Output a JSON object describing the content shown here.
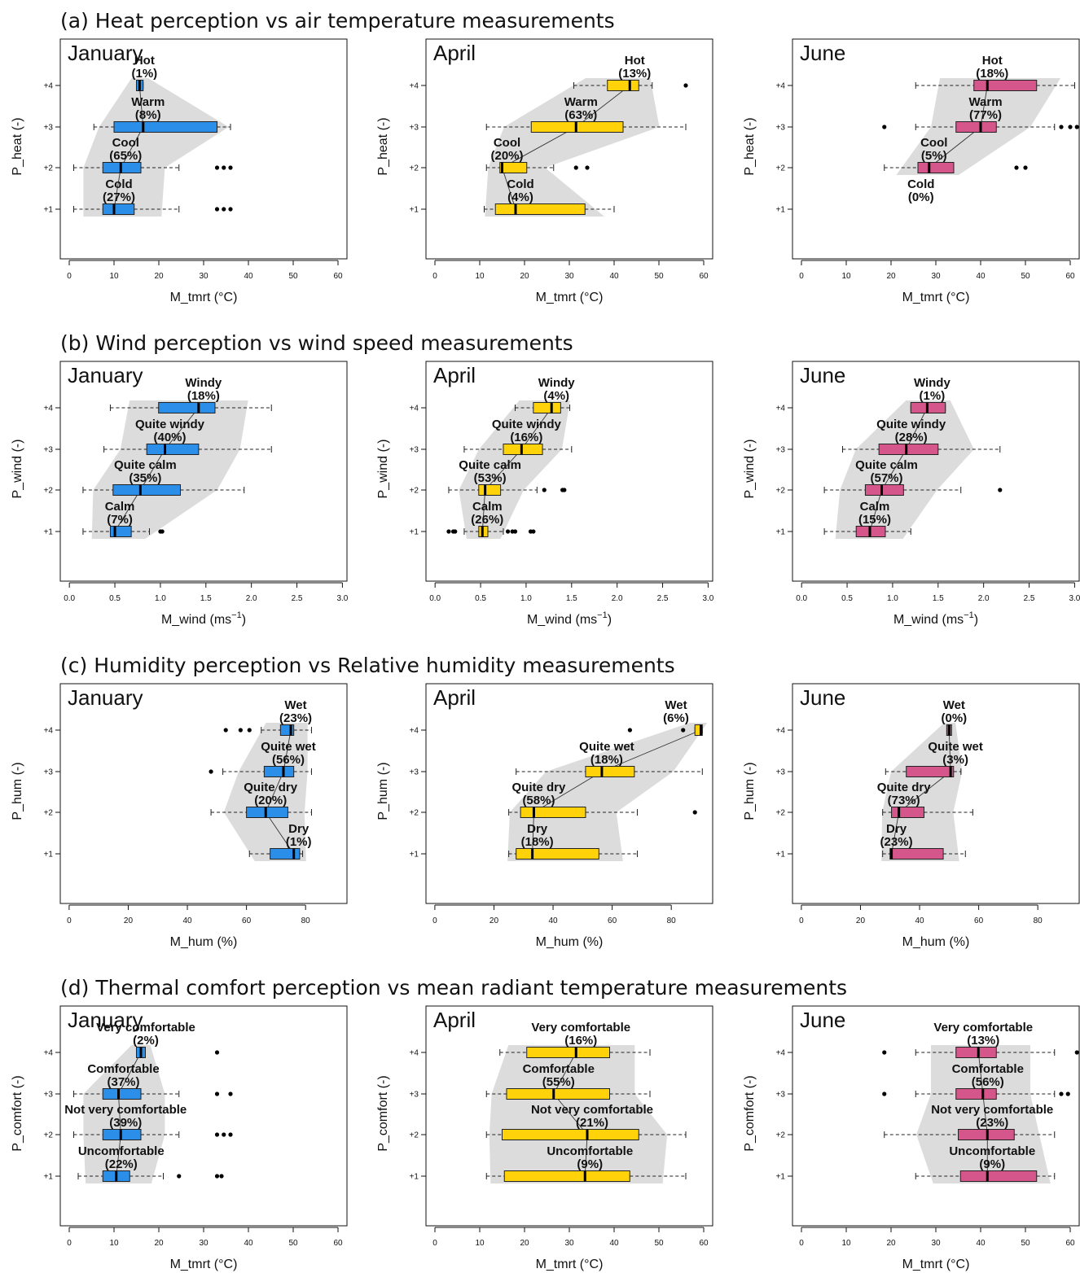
{
  "colors": {
    "January": "#2b8fea",
    "April": "#ffd20a",
    "June": "#d4568a",
    "band": "#dcdcdc"
  },
  "sections": [
    {
      "title": "(a) Heat perception vs air temperature measurements",
      "ylabel": "P_heat (-)",
      "xlabel": "M_tmrt (°C)",
      "xlim": [
        -2,
        62
      ],
      "xticks": [
        "0",
        "10",
        "20",
        "30",
        "40",
        "50",
        "60"
      ],
      "xtick_values": [
        0,
        10,
        20,
        30,
        40,
        50,
        60
      ],
      "yticks": [
        "+1",
        "+2",
        "+3",
        "+4"
      ],
      "panels": [
        {
          "month": "January",
          "boxes": [
            {
              "level": 1,
              "category": "Cold",
              "pct": "(27%)",
              "whisker_low": 1,
              "q1": 7.5,
              "median": 10,
              "q3": 14.5,
              "whisker_high": 24.5,
              "outliers": [
                33,
                34.5,
                36
              ]
            },
            {
              "level": 2,
              "category": "Cool",
              "pct": "(65%)",
              "whisker_low": 1,
              "q1": 7.5,
              "median": 11.5,
              "q3": 16,
              "whisker_high": 24.5,
              "outliers": [
                33,
                34.5,
                36
              ]
            },
            {
              "level": 3,
              "category": "Warm",
              "pct": "(8%)",
              "whisker_low": 5.5,
              "q1": 10,
              "median": 16.5,
              "q3": 33,
              "whisker_high": 36,
              "outliers": []
            },
            {
              "level": 4,
              "category": "Hot",
              "pct": "(1%)",
              "whisker_low": 15,
              "q1": 15,
              "median": 15.7,
              "q3": 16.5,
              "whisker_high": 16.5,
              "outliers": []
            }
          ]
        },
        {
          "month": "April",
          "boxes": [
            {
              "level": 1,
              "category": "Cold",
              "pct": "(4%)",
              "whisker_low": 11,
              "q1": 13.5,
              "median": 18,
              "q3": 33.5,
              "whisker_high": 40,
              "outliers": []
            },
            {
              "level": 2,
              "category": "Cool",
              "pct": "(20%)",
              "whisker_low": 11.5,
              "q1": 14.5,
              "median": 15,
              "q3": 20.5,
              "whisker_high": 26.5,
              "outliers": [
                31.5,
                34
              ]
            },
            {
              "level": 3,
              "category": "Warm",
              "pct": "(63%)",
              "whisker_low": 11.5,
              "q1": 21.5,
              "median": 31.5,
              "q3": 42,
              "whisker_high": 56,
              "outliers": []
            },
            {
              "level": 4,
              "category": "Hot",
              "pct": "(13%)",
              "whisker_low": 31,
              "q1": 38.5,
              "median": 43.5,
              "q3": 45.5,
              "whisker_high": 48.5,
              "outliers": [
                56
              ]
            }
          ]
        },
        {
          "month": "June",
          "boxes": [
            {
              "level": 1,
              "category": "Cold",
              "pct": "(0%)"
            },
            {
              "level": 2,
              "category": "Cool",
              "pct": "(5%)",
              "whisker_low": 18.5,
              "q1": 26,
              "median": 28.5,
              "q3": 34,
              "whisker_high": 34,
              "outliers": [
                48,
                50
              ]
            },
            {
              "level": 3,
              "category": "Warm",
              "pct": "(77%)",
              "whisker_low": 25.5,
              "q1": 34.5,
              "median": 40,
              "q3": 43.5,
              "whisker_high": 56.5,
              "outliers": [
                18.5,
                58,
                60,
                61.5
              ]
            },
            {
              "level": 4,
              "category": "Hot",
              "pct": "(18%)",
              "whisker_low": 25.5,
              "q1": 38.5,
              "median": 41.5,
              "q3": 52.5,
              "whisker_high": 61,
              "outliers": []
            }
          ]
        }
      ]
    },
    {
      "title": "(b) Wind perception vs wind speed measurements",
      "ylabel": "P_wind (-)",
      "xlabel": "M_wind (ms",
      "xlabel_sup": "−1",
      "xlabel_end": ")",
      "xlim": [
        -0.1,
        3.05
      ],
      "xticks": [
        "0.0",
        "0.5",
        "1.0",
        "1.5",
        "2.0",
        "2.5",
        "3.0"
      ],
      "xtick_values": [
        0,
        0.5,
        1,
        1.5,
        2,
        2.5,
        3
      ],
      "yticks": [
        "+1",
        "+2",
        "+3",
        "+4"
      ],
      "panels": [
        {
          "month": "January",
          "boxes": [
            {
              "level": 1,
              "category": "Calm",
              "pct": "(7%)",
              "whisker_low": 0.15,
              "q1": 0.45,
              "median": 0.5,
              "q3": 0.68,
              "whisker_high": 0.88,
              "outliers": [
                1,
                1.02
              ]
            },
            {
              "level": 2,
              "category": "Quite calm",
              "pct": "(35%)",
              "whisker_low": 0.15,
              "q1": 0.48,
              "median": 0.78,
              "q3": 1.22,
              "whisker_high": 1.92,
              "outliers": []
            },
            {
              "level": 3,
              "category": "Quite windy",
              "pct": "(40%)",
              "whisker_low": 0.38,
              "q1": 0.85,
              "median": 1.05,
              "q3": 1.42,
              "whisker_high": 2.22,
              "outliers": []
            },
            {
              "level": 4,
              "category": "Windy",
              "pct": "(18%)",
              "whisker_low": 0.45,
              "q1": 0.98,
              "median": 1.42,
              "q3": 1.6,
              "whisker_high": 2.22,
              "outliers": []
            }
          ]
        },
        {
          "month": "April",
          "boxes": [
            {
              "level": 1,
              "category": "Calm",
              "pct": "(26%)",
              "whisker_low": 0.32,
              "q1": 0.48,
              "median": 0.52,
              "q3": 0.58,
              "whisker_high": 0.75,
              "outliers": [
                0.15,
                0.2,
                0.22,
                0.8,
                0.85,
                0.88,
                1.05,
                1.08
              ]
            },
            {
              "level": 2,
              "category": "Quite calm",
              "pct": "(53%)",
              "whisker_low": 0.15,
              "q1": 0.48,
              "median": 0.55,
              "q3": 0.72,
              "whisker_high": 1.12,
              "outliers": [
                1.2,
                1.4,
                1.42
              ]
            },
            {
              "level": 3,
              "category": "Quite windy",
              "pct": "(16%)",
              "whisker_low": 0.32,
              "q1": 0.75,
              "median": 0.95,
              "q3": 1.18,
              "whisker_high": 1.5,
              "outliers": []
            },
            {
              "level": 4,
              "category": "Windy",
              "pct": "(4%)",
              "whisker_low": 0.88,
              "q1": 1.08,
              "median": 1.28,
              "q3": 1.38,
              "whisker_high": 1.48,
              "outliers": []
            }
          ]
        },
        {
          "month": "June",
          "boxes": [
            {
              "level": 1,
              "category": "Calm",
              "pct": "(15%)",
              "whisker_low": 0.25,
              "q1": 0.6,
              "median": 0.75,
              "q3": 0.92,
              "whisker_high": 1.2,
              "outliers": []
            },
            {
              "level": 2,
              "category": "Quite calm",
              "pct": "(57%)",
              "whisker_low": 0.25,
              "q1": 0.7,
              "median": 0.88,
              "q3": 1.12,
              "whisker_high": 1.75,
              "outliers": [
                2.18
              ]
            },
            {
              "level": 3,
              "category": "Quite windy",
              "pct": "(28%)",
              "whisker_low": 0.45,
              "q1": 0.85,
              "median": 1.15,
              "q3": 1.5,
              "whisker_high": 2.18,
              "outliers": []
            },
            {
              "level": 4,
              "category": "Windy",
              "pct": "(1%)",
              "whisker_low": 1.2,
              "q1": 1.2,
              "median": 1.38,
              "q3": 1.58,
              "whisker_high": 1.58,
              "outliers": []
            }
          ]
        }
      ]
    },
    {
      "title": "(c) Humidity perception vs Relative humidity measurements",
      "ylabel": "P_hum (-)",
      "xlabel": "M_hum (%)",
      "xlim": [
        -3,
        94
      ],
      "xticks": [
        "0",
        "20",
        "40",
        "60",
        "80"
      ],
      "xtick_values": [
        0,
        20,
        40,
        60,
        80
      ],
      "yticks": [
        "+1",
        "+2",
        "+3",
        "+4"
      ],
      "panels": [
        {
          "month": "January",
          "boxes": [
            {
              "level": 1,
              "category": "Dry",
              "pct": "(1%)",
              "whisker_low": 61,
              "q1": 68,
              "median": 76,
              "q3": 78,
              "whisker_high": 79,
              "outliers": []
            },
            {
              "level": 2,
              "category": "Quite dry",
              "pct": "(20%)",
              "whisker_low": 48,
              "q1": 60,
              "median": 66.5,
              "q3": 74,
              "whisker_high": 82,
              "outliers": []
            },
            {
              "level": 3,
              "category": "Quite wet",
              "pct": "(56%)",
              "whisker_low": 52,
              "q1": 66,
              "median": 72.5,
              "q3": 76,
              "whisker_high": 82,
              "outliers": [
                48
              ]
            },
            {
              "level": 4,
              "category": "Wet",
              "pct": "(23%)",
              "whisker_low": 65,
              "q1": 71.5,
              "median": 75,
              "q3": 76,
              "whisker_high": 82,
              "outliers": [
                53,
                58,
                61
              ]
            }
          ]
        },
        {
          "month": "April",
          "boxes": [
            {
              "level": 1,
              "category": "Dry",
              "pct": "(18%)",
              "whisker_low": 25,
              "q1": 27.5,
              "median": 33,
              "q3": 55.5,
              "whisker_high": 68.5,
              "outliers": []
            },
            {
              "level": 2,
              "category": "Quite dry",
              "pct": "(58%)",
              "whisker_low": 25,
              "q1": 29,
              "median": 33.5,
              "q3": 51,
              "whisker_high": 68.5,
              "outliers": [
                88
              ]
            },
            {
              "level": 3,
              "category": "Quite wet",
              "pct": "(18%)",
              "whisker_low": 27.5,
              "q1": 51,
              "median": 56.5,
              "q3": 67.5,
              "whisker_high": 90.5,
              "outliers": []
            },
            {
              "level": 4,
              "category": "Wet",
              "pct": "(6%)",
              "whisker_low": 88,
              "q1": 88,
              "median": 90,
              "q3": 90.5,
              "whisker_high": 90.5,
              "outliers": [
                66,
                84
              ]
            }
          ]
        },
        {
          "month": "June",
          "boxes": [
            {
              "level": 1,
              "category": "Dry",
              "pct": "(23%)",
              "whisker_low": 27.5,
              "q1": 30,
              "median": 30.5,
              "q3": 48,
              "whisker_high": 55.5,
              "outliers": []
            },
            {
              "level": 2,
              "category": "Quite dry",
              "pct": "(73%)",
              "whisker_low": 27.5,
              "q1": 30.5,
              "median": 33,
              "q3": 41.5,
              "whisker_high": 58,
              "outliers": []
            },
            {
              "level": 3,
              "category": "Quite wet",
              "pct": "(3%)",
              "whisker_low": 28.5,
              "q1": 35.5,
              "median": 50.5,
              "q3": 51.5,
              "whisker_high": 54,
              "outliers": []
            },
            {
              "level": 4,
              "category": "Wet",
              "pct": "(0%)",
              "whisker_low": 50,
              "q1": 50,
              "median": 50,
              "q3": 50.5,
              "whisker_high": 50.5,
              "outliers": []
            }
          ]
        }
      ]
    },
    {
      "title": "(d) Thermal comfort perception vs mean radiant temperature measurements",
      "ylabel": "P_comfort (-)",
      "xlabel": "M_tmrt (°C)",
      "xlim": [
        -2,
        62
      ],
      "xticks": [
        "0",
        "10",
        "20",
        "30",
        "40",
        "50",
        "60"
      ],
      "xtick_values": [
        0,
        10,
        20,
        30,
        40,
        50,
        60
      ],
      "yticks": [
        "+1",
        "+2",
        "+3",
        "+4"
      ],
      "panels": [
        {
          "month": "January",
          "boxes": [
            {
              "level": 1,
              "category": "Uncomfortable",
              "pct": "(22%)",
              "whisker_low": 2,
              "q1": 7.5,
              "median": 10.5,
              "q3": 13.5,
              "whisker_high": 21,
              "outliers": [
                24.5,
                33,
                34
              ]
            },
            {
              "level": 2,
              "category": "Not very comfortable",
              "pct": "(39%)",
              "whisker_low": 1,
              "q1": 7.5,
              "median": 11.5,
              "q3": 16,
              "whisker_high": 24.5,
              "outliers": [
                33,
                34.5,
                36
              ]
            },
            {
              "level": 3,
              "category": "Comfortable",
              "pct": "(37%)",
              "whisker_low": 1,
              "q1": 7.5,
              "median": 11,
              "q3": 16,
              "whisker_high": 24.5,
              "outliers": [
                33,
                36
              ]
            },
            {
              "level": 4,
              "category": "Very comfortable",
              "pct": "(2%)",
              "whisker_low": 15,
              "q1": 15,
              "median": 16,
              "q3": 17,
              "whisker_high": 17,
              "outliers": [
                33
              ]
            }
          ]
        },
        {
          "month": "April",
          "boxes": [
            {
              "level": 1,
              "category": "Uncomfortable",
              "pct": "(9%)",
              "whisker_low": 11.5,
              "q1": 15.5,
              "median": 33.5,
              "q3": 43.5,
              "whisker_high": 56,
              "outliers": []
            },
            {
              "level": 2,
              "category": "Not very comfortable",
              "pct": "(21%)",
              "whisker_low": 11.5,
              "q1": 15,
              "median": 34,
              "q3": 45.5,
              "whisker_high": 56,
              "outliers": []
            },
            {
              "level": 3,
              "category": "Comfortable",
              "pct": "(55%)",
              "whisker_low": 11.5,
              "q1": 16,
              "median": 26.5,
              "q3": 39,
              "whisker_high": 48,
              "outliers": []
            },
            {
              "level": 4,
              "category": "Very comfortable",
              "pct": "(16%)",
              "whisker_low": 14.5,
              "q1": 20.5,
              "median": 31.5,
              "q3": 39,
              "whisker_high": 48,
              "outliers": []
            }
          ]
        },
        {
          "month": "June",
          "boxes": [
            {
              "level": 1,
              "category": "Uncomfortable",
              "pct": "(9%)",
              "whisker_low": 25.5,
              "q1": 35.5,
              "median": 41.5,
              "q3": 52.5,
              "whisker_high": 56.5,
              "outliers": []
            },
            {
              "level": 2,
              "category": "Not very comfortable",
              "pct": "(23%)",
              "whisker_low": 18.5,
              "q1": 35,
              "median": 41.5,
              "q3": 47.5,
              "whisker_high": 56.5,
              "outliers": []
            },
            {
              "level": 3,
              "category": "Comfortable",
              "pct": "(56%)",
              "whisker_low": 25.5,
              "q1": 34.5,
              "median": 40.5,
              "q3": 43.5,
              "whisker_high": 56.5,
              "outliers": [
                18.5,
                58,
                59.5
              ]
            },
            {
              "level": 4,
              "category": "Very comfortable",
              "pct": "(13%)",
              "whisker_low": 25.5,
              "q1": 34.5,
              "median": 39.5,
              "q3": 43.5,
              "whisker_high": 56.5,
              "outliers": [
                18.5,
                61.5
              ]
            }
          ]
        }
      ]
    }
  ]
}
